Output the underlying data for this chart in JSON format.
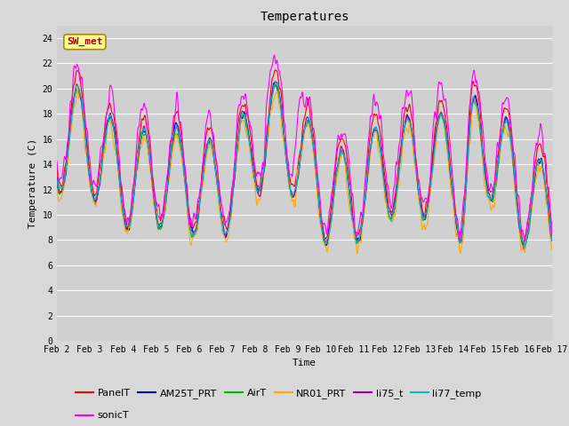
{
  "title": "Temperatures",
  "xlabel": "Time",
  "ylabel": "Temperature (C)",
  "ylim": [
    0,
    25
  ],
  "yticks": [
    0,
    2,
    4,
    6,
    8,
    10,
    12,
    14,
    16,
    18,
    20,
    22,
    24
  ],
  "date_labels": [
    "Feb 2",
    "Feb 3",
    "Feb 4",
    "Feb 5",
    "Feb 6",
    "Feb 7",
    "Feb 8",
    "Feb 9",
    "Feb 10",
    "Feb 11",
    "Feb 12",
    "Feb 13",
    "Feb 14",
    "Feb 15",
    "Feb 16",
    "Feb 17"
  ],
  "legend_entries": [
    "PanelT",
    "AM25T_PRT",
    "AirT",
    "NR01_PRT",
    "li75_t",
    "li77_temp",
    "sonicT"
  ],
  "line_colors": [
    "#ff0000",
    "#0000cc",
    "#00bb00",
    "#ffaa00",
    "#9900aa",
    "#00bbcc",
    "#ff00ff"
  ],
  "bg_color": "#d8d8d8",
  "plot_bg_color": "#d0d0d0",
  "annotation_text": "SW_met",
  "annotation_color": "#aa0000",
  "annotation_bg": "#ffff99",
  "annotation_border": "#aa8800",
  "title_fontsize": 10,
  "axis_fontsize": 8,
  "tick_fontsize": 7,
  "legend_fontsize": 8,
  "n_points": 1440
}
